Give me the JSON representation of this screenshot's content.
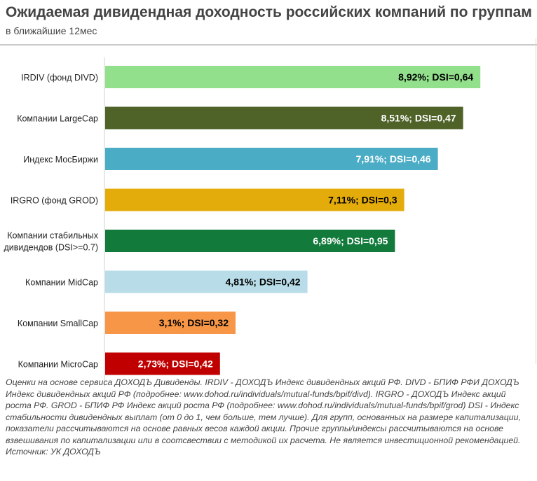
{
  "header": {
    "title": "Ожидаемая дивидендная доходность российских компаний по группам",
    "subtitle": "в ближайшие 12мес"
  },
  "chart_data": {
    "type": "bar",
    "orientation": "horizontal",
    "title": "Ожидаемая дивидендная доходность российских компаний по группам",
    "subtitle": "в ближайшие 12мес",
    "xlabel": "",
    "ylabel": "",
    "xlim": [
      0,
      10
    ],
    "grid": false,
    "legend": "none",
    "categories": [
      [
        "IRDIV (фонд DIVD)"
      ],
      [
        "Компании LargeCap"
      ],
      [
        "Индекс МосБиржи"
      ],
      [
        "IRGRO (фонд GROD)"
      ],
      [
        "Компании стабильных",
        "дивидендов (DSI>=0.7)"
      ],
      [
        "Компании MidCap"
      ],
      [
        "Компании SmallCap"
      ],
      [
        "Компании MicroCap"
      ]
    ],
    "values": [
      8.92,
      8.51,
      7.91,
      7.11,
      6.89,
      4.81,
      3.1,
      2.73
    ],
    "dsi": [
      0.64,
      0.47,
      0.46,
      0.3,
      0.95,
      0.42,
      0.32,
      0.42
    ],
    "labels": [
      "8,92%;  DSI=0,64",
      "8,51%;  DSI=0,47",
      "7,91%;  DSI=0,46",
      "7,11%;  DSI=0,3",
      "6,89%;  DSI=0,95",
      "4,81%;  DSI=0,42",
      "3,1%;  DSI=0,32",
      "2,73%;  DSI=0,42"
    ],
    "colors": [
      "#92e08c",
      "#4f6228",
      "#4bacc6",
      "#e4ac0b",
      "#127a3b",
      "#b8dde8",
      "#f79646",
      "#c00000"
    ],
    "label_colors": [
      "#000000",
      "#ffffff",
      "#ffffff",
      "#000000",
      "#ffffff",
      "#000000",
      "#000000",
      "#ffffff"
    ]
  },
  "footnote": "Оценки на основе сервиса ДОХОДЪ Дивиденды. IRDIV - ДОХОДЪ Индекс дивидендных акций РФ. DIVD - БПИФ РФИ ДОХОДЪ Индекс дивидендных акций РФ (подробнее: www.dohod.ru/individuals/mutual-funds/bpif/divd). IRGRO - ДОХОДЪ Индекс акций роста РФ. GROD - БПИФ РФ Индекс акций роста РФ (подробнее: www.dohod.ru/individuals/mutual-funds/bpif/grod) DSI - Индекс стабильности дивидендных выплат (от 0 до 1, чем больше, тем лучше). Для групп, основанных на размере капитализации, показатели рассчитываются на основе равных весов каждой акции. Прочие группы/индексы рассчитываются на основе взвешивания по капитализации или в соотсвествии с методикой их расчета. Не является инвестиционной рекомендацией. Источник: УК ДОХОДЪ"
}
